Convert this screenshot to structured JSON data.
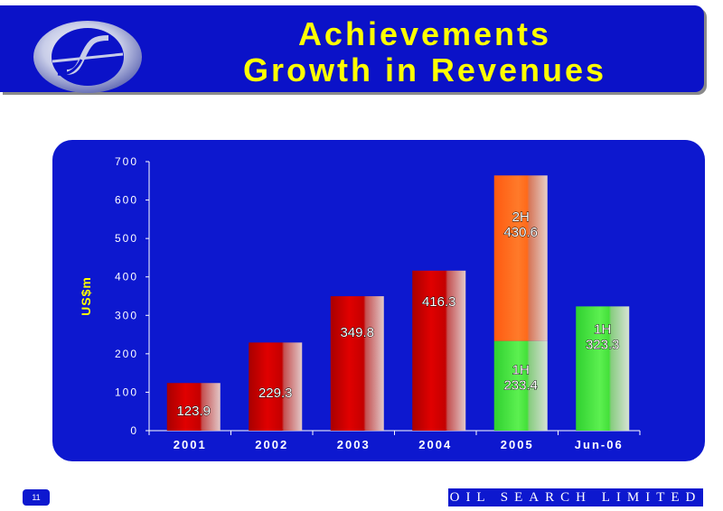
{
  "slide": {
    "title_line1": "Achievements",
    "title_line2": "Growth in Revenues",
    "page_number": "11",
    "brand": "OIL SEARCH LIMITED",
    "colors": {
      "header_bg": "#0b12c8",
      "title": "#ffff00",
      "panel_bg": "#0d18cf",
      "bar_red": "#cc0000",
      "bar_orange": "#ff6a1a",
      "bar_green": "#44e03a"
    }
  },
  "chart_data": {
    "type": "bar",
    "stacked": true,
    "categories": [
      "2001",
      "2002",
      "2003",
      "2004",
      "2005",
      "Jun-06"
    ],
    "ylabel": "US$m",
    "ylim": [
      0,
      700
    ],
    "yticks": [
      0,
      100,
      200,
      300,
      400,
      500,
      600,
      700
    ],
    "grid": false,
    "segments": [
      {
        "category": "2001",
        "value": 123.9,
        "label": "123.9",
        "color": "red"
      },
      {
        "category": "2002",
        "value": 229.3,
        "label": "229.3",
        "color": "red"
      },
      {
        "category": "2003",
        "value": 349.8,
        "label": "349.8",
        "color": "red"
      },
      {
        "category": "2004",
        "value": 416.3,
        "label": "416.3",
        "color": "red"
      },
      {
        "category": "2005",
        "value": 233.4,
        "label": "1H\n233.4",
        "color": "green"
      },
      {
        "category": "2005",
        "value": 430.6,
        "label": "2H\n430.6",
        "color": "orange"
      },
      {
        "category": "Jun-06",
        "value": 323.3,
        "label": "1H\n323.3",
        "color": "green"
      }
    ]
  }
}
